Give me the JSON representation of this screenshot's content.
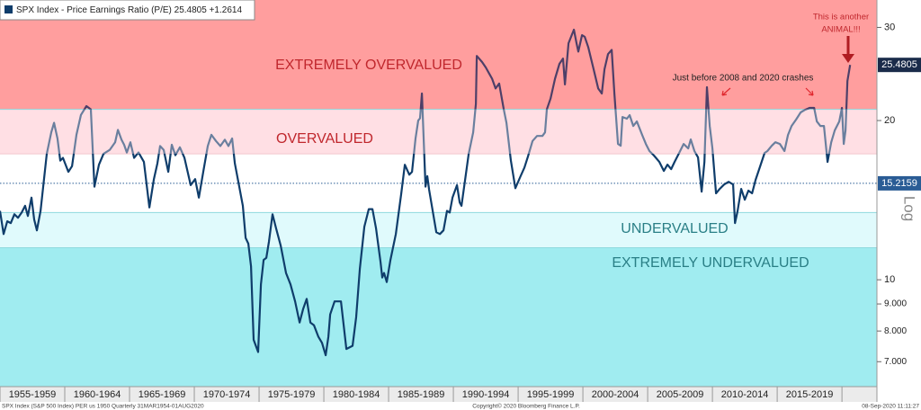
{
  "chart_data": {
    "type": "line",
    "log_scale": true,
    "series": [
      {
        "name": "SPX Index - Price Earnings Ratio (P/E)",
        "color": "#0f3d6b",
        "values": [
          13.5,
          12.2,
          12.9,
          12.8,
          13.3,
          13.1,
          13.4,
          13.8,
          13.2,
          14.3,
          13.0,
          12.4,
          13.5,
          17.3,
          19.0,
          19.8,
          18.5,
          16.8,
          17.0,
          16.0,
          16.4,
          18.8,
          20.5,
          21.3,
          21.0,
          15.0,
          16.5,
          17.3,
          17.6,
          18.2,
          19.2,
          18.4,
          18.0,
          17.4,
          18.2,
          17.0,
          17.4,
          16.7,
          13.7,
          15.5,
          16.6,
          17.9,
          17.6,
          16.0,
          18.0,
          17.2,
          17.8,
          17.0,
          15.1,
          15.5,
          14.3,
          16.0,
          17.9,
          18.8,
          18.3,
          17.9,
          18.4,
          17.9,
          18.5,
          16.6,
          15.0,
          13.8,
          12.0,
          11.7,
          10.6,
          7.7,
          7.3,
          9.8,
          10.9,
          11.0,
          11.8,
          13.3,
          12.5,
          11.6,
          10.3,
          9.8,
          9.1,
          8.3,
          8.8,
          9.2,
          8.3,
          8.2,
          7.8,
          7.6,
          7.2,
          7.8,
          8.6,
          9.1,
          9.1,
          9.1,
          7.4,
          7.5,
          8.5,
          10.5,
          12.6,
          13.6,
          13.6,
          12.5,
          10.8,
          10.1,
          10.3,
          9.9,
          10.9,
          12.2,
          14.5,
          16.5,
          15.8,
          16.0,
          18.5,
          20.0,
          20.2,
          22.5,
          15.0,
          15.7,
          14.8,
          12.3,
          12.2,
          12.4,
          13.5,
          13.4,
          14.3,
          15.1,
          14.0,
          13.8,
          15.4,
          17.3,
          19.0,
          21.5,
          26.5,
          25.8,
          25.2,
          24.5,
          24.0,
          23.0,
          23.5,
          21.0,
          19.8,
          16.8,
          14.9,
          15.6,
          16.3,
          17.1,
          18.3,
          18.7,
          18.7,
          19.0,
          21.0,
          22.0,
          24.0,
          25.6,
          26.2,
          23.4,
          28.0,
          29.7,
          28.0,
          27.0,
          29.0,
          28.8,
          27.5,
          25.0,
          23.0,
          22.5,
          25.0,
          26.7,
          27.2,
          22.5,
          18.06,
          17.92,
          20.31,
          20.16,
          20.47,
          19.53,
          19.92,
          18.78,
          18.06,
          17.51,
          17.17,
          16.7,
          16.06,
          16.51,
          16.19,
          16.7,
          17.37,
          18.06,
          17.71,
          18.42,
          17.51,
          17.03,
          14.68,
          16.7,
          23.12,
          19.53,
          17.71,
          14.57,
          14.85,
          15.14,
          15.32,
          15.14,
          12.8,
          13.47,
          14.85,
          14.17,
          14.74,
          14.57,
          15.45,
          16.38,
          17.37,
          17.51,
          17.92,
          18.2,
          18.06,
          17.51,
          18.78,
          19.53,
          20.08,
          20.72,
          20.96,
          21.13,
          21.13,
          19.92,
          19.53,
          19.53,
          16.7,
          18.2,
          19.16,
          19.92,
          21.13,
          18.06,
          19.16,
          23.76,
          25.4805
        ]
      }
    ],
    "x": [
      1955.0,
      1955.28,
      1955.56,
      1955.83,
      1956.11,
      1956.39,
      1956.67,
      1956.94,
      1957.15,
      1957.43,
      1957.64,
      1957.85,
      1958.13,
      1958.61,
      1958.96,
      1959.17,
      1959.44,
      1959.65,
      1959.86,
      1960.28,
      1960.56,
      1960.9,
      1961.25,
      1961.67,
      1962.01,
      1962.29,
      1962.64,
      1962.99,
      1963.47,
      1963.89,
      1964.1,
      1964.38,
      1964.58,
      1964.79,
      1965.07,
      1965.35,
      1965.69,
      1966.11,
      1966.53,
      1966.88,
      1967.15,
      1967.36,
      1967.64,
      1967.99,
      1968.26,
      1968.54,
      1968.89,
      1969.24,
      1969.72,
      1970.07,
      1970.35,
      1970.69,
      1971.04,
      1971.32,
      1971.67,
      1972.01,
      1972.36,
      1972.64,
      1972.92,
      1973.13,
      1973.47,
      1973.75,
      1973.96,
      1974.17,
      1974.38,
      1974.58,
      1974.93,
      1975.14,
      1975.35,
      1975.56,
      1975.76,
      1976.04,
      1976.32,
      1976.67,
      1977.08,
      1977.43,
      1977.78,
      1978.13,
      1978.4,
      1978.68,
      1978.96,
      1979.24,
      1979.58,
      1979.86,
      1980.14,
      1980.35,
      1980.49,
      1980.83,
      1981.11,
      1981.32,
      1981.74,
      1982.22,
      1982.5,
      1982.78,
      1983.13,
      1983.47,
      1983.75,
      1984.03,
      1984.38,
      1984.51,
      1984.65,
      1984.86,
      1985.14,
      1985.56,
      1985.97,
      1986.25,
      1986.6,
      1986.81,
      1987.08,
      1987.29,
      1987.43,
      1987.57,
      1987.85,
      1987.99,
      1988.13,
      1988.68,
      1988.96,
      1989.24,
      1989.51,
      1989.72,
      1989.93,
      1990.28,
      1990.49,
      1990.63,
      1990.9,
      1991.18,
      1991.53,
      1991.74,
      1991.81,
      1992.22,
      1992.5,
      1992.78,
      1992.99,
      1993.26,
      1993.54,
      1993.89,
      1994.1,
      1994.44,
      1994.79,
      1995.14,
      1995.49,
      1995.76,
      1996.11,
      1996.46,
      1996.88,
      1997.08,
      1997.22,
      1997.5,
      1997.85,
      1998.19,
      1998.47,
      1998.61,
      1998.89,
      1999.31,
      1999.51,
      1999.65,
      1999.93,
      2000.14,
      2000.42,
      2000.83,
      2001.18,
      2001.46,
      2001.67,
      2001.94,
      2002.22,
      2002.43,
      2002.71,
      2002.92,
      2003.06,
      2003.4,
      2003.61,
      2003.89,
      2004.17,
      2004.58,
      2004.86,
      2005.14,
      2005.49,
      2005.9,
      2006.25,
      2006.53,
      2006.81,
      2007.08,
      2007.43,
      2007.78,
      2008.13,
      2008.33,
      2008.61,
      2008.89,
      2009.17,
      2009.38,
      2009.58,
      2009.79,
      2010.0,
      2010.28,
      2010.56,
      2010.9,
      2011.25,
      2011.6,
      2011.74,
      2011.94,
      2012.22,
      2012.5,
      2012.78,
      2013.06,
      2013.33,
      2013.68,
      2014.03,
      2014.24,
      2014.58,
      2014.86,
      2015.21,
      2015.56,
      2015.83,
      2016.11,
      2016.46,
      2016.81,
      2017.15,
      2017.5,
      2017.85,
      2018.06,
      2018.33,
      2018.61,
      2018.89,
      2019.17,
      2019.44,
      2019.79,
      2020.0,
      2020.14,
      2020.28,
      2020.42,
      2020.63
    ],
    "xlim": [
      1955,
      2022.7
    ],
    "xticks": [
      1955,
      1960,
      1965,
      1970,
      1975,
      1980,
      1985,
      1990,
      1995,
      2000,
      2005,
      2010,
      2015,
      2020
    ],
    "x_period_labels": [
      "1955-1959",
      "1960-1964",
      "1965-1969",
      "1970-1974",
      "1975-1979",
      "1980-1984",
      "1985-1989",
      "1990-1994",
      "1995-1999",
      "2000-2004",
      "2005-2009",
      "2010-2014",
      "2015-2019"
    ],
    "ylim": [
      6.28,
      33.8
    ],
    "yticks": [
      30,
      20,
      10,
      {
        "value": 9,
        "label": "9.000"
      },
      {
        "value": 8,
        "label": "8.000"
      },
      {
        "value": 7,
        "label": "7.000"
      }
    ],
    "log_label": "Log",
    "change": "+1.2614",
    "mean_line": {
      "value": 15.2159,
      "color": "#2a5c95"
    },
    "bands": [
      {
        "label": "EXTREMELY OVERVALUED",
        "from": 21.0,
        "to": 33.8,
        "color": "#ff9e9e",
        "line_color": "#4d3f68",
        "text_color": "#c0272d"
      },
      {
        "label": "OVERVALUED",
        "from": 17.3,
        "to": 21.0,
        "color": "#ffdfe4",
        "line_color": "#6a7f9e",
        "text_color": "#c0272d"
      },
      {
        "from": 13.4,
        "to": 17.3,
        "color": "#ffffff",
        "line_color": "#0f3d6b"
      },
      {
        "label": "UNDERVALUED",
        "from": 11.5,
        "to": 13.4,
        "color": "#e0fafc",
        "line_color": "#0f3d6b",
        "text_color": "#2a7f86"
      },
      {
        "label": "EXTREMELY UNDERVALUED",
        "from": 6.28,
        "to": 11.5,
        "color": "#a0ecf0",
        "line_color": "#0f3d6b",
        "text_color": "#2a7f86"
      }
    ],
    "annotations": [
      {
        "lines": [
          "This is another",
          "ANIMAL!!!"
        ],
        "color": "#c0272d"
      },
      {
        "lines": [
          "Just before 2008 and 2020 crashes"
        ],
        "color": "#222222"
      }
    ],
    "footer_left": "SPX Index (S&P 500 Index) PER us 1950  Quarterly 31MAR1954-01AUG2020",
    "footer_center": "Copyright© 2020 Bloomberg Finance L.P.",
    "footer_right": "08-Sep-2020 11:11:27"
  }
}
